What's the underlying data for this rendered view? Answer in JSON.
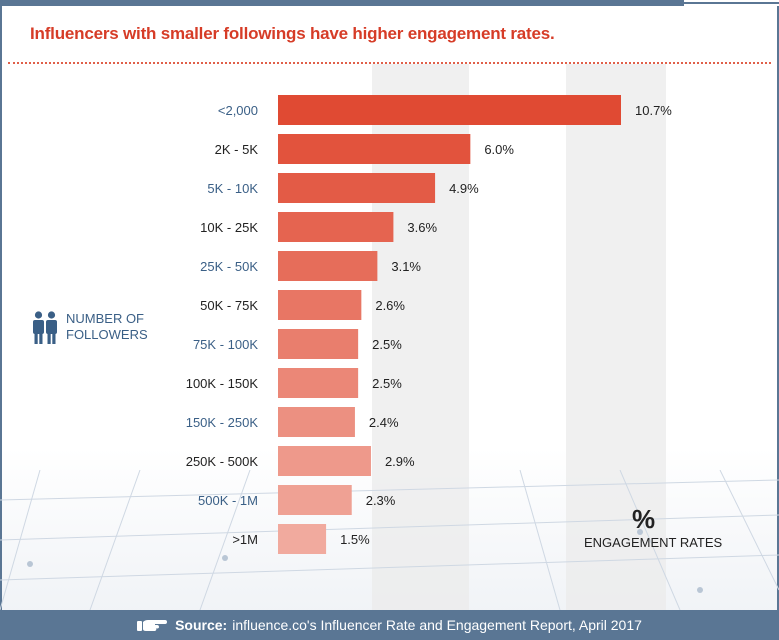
{
  "title": "Influencers with smaller followings have higher engagement rates.",
  "legend": {
    "label": "NUMBER OF\nFOLLOWERS",
    "icon": "people-icon"
  },
  "engagement": {
    "symbol": "%",
    "label": "ENGAGEMENT RATES"
  },
  "footer": {
    "source_label": "Source:",
    "source_text": "influence.co's Influencer Rate and Engagement Report, April 2017",
    "icon": "pointing-hand-icon"
  },
  "colors": {
    "title": "#d63c27",
    "footer_bg": "#5a7694",
    "category_blue": "#3a5f86",
    "category_dark": "#222222",
    "bar_start": "#e04a33",
    "bar_end": "#f1aa9e"
  },
  "chart_data": {
    "type": "bar",
    "orientation": "horizontal",
    "categories": [
      "<2,000",
      "2K - 5K",
      "5K - 10K",
      "10K - 25K",
      "25K - 50K",
      "50K - 75K",
      "75K - 100K",
      "100K - 150K",
      "150K - 250K",
      "250K - 500K",
      "500K - 1M",
      ">1M"
    ],
    "values": [
      10.7,
      6.0,
      4.9,
      3.6,
      3.1,
      2.6,
      2.5,
      2.5,
      2.4,
      2.9,
      2.3,
      1.5
    ],
    "value_labels": [
      "10.7%",
      "6.0%",
      "4.9%",
      "3.6%",
      "3.1%",
      "2.6%",
      "2.5%",
      "2.5%",
      "2.4%",
      "2.9%",
      "2.3%",
      "1.5%"
    ],
    "title": "Influencers with smaller followings have higher engagement rates.",
    "xlabel": "ENGAGEMENT RATES",
    "ylabel": "NUMBER OF FOLLOWERS",
    "xlim": [
      0,
      10.7
    ],
    "grid": false,
    "legend": "none"
  }
}
